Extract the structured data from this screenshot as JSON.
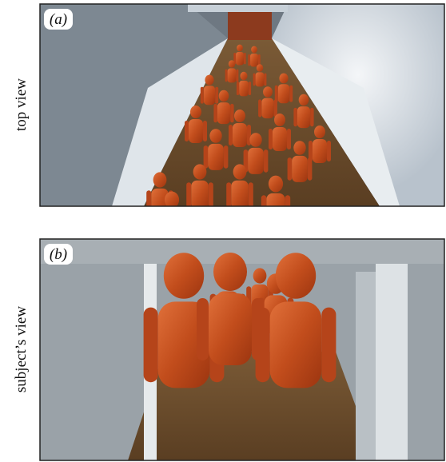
{
  "panels": [
    {
      "label": "(a)",
      "side_label": "top view"
    },
    {
      "label": "(b)",
      "side_label": "subject’s view"
    }
  ]
}
